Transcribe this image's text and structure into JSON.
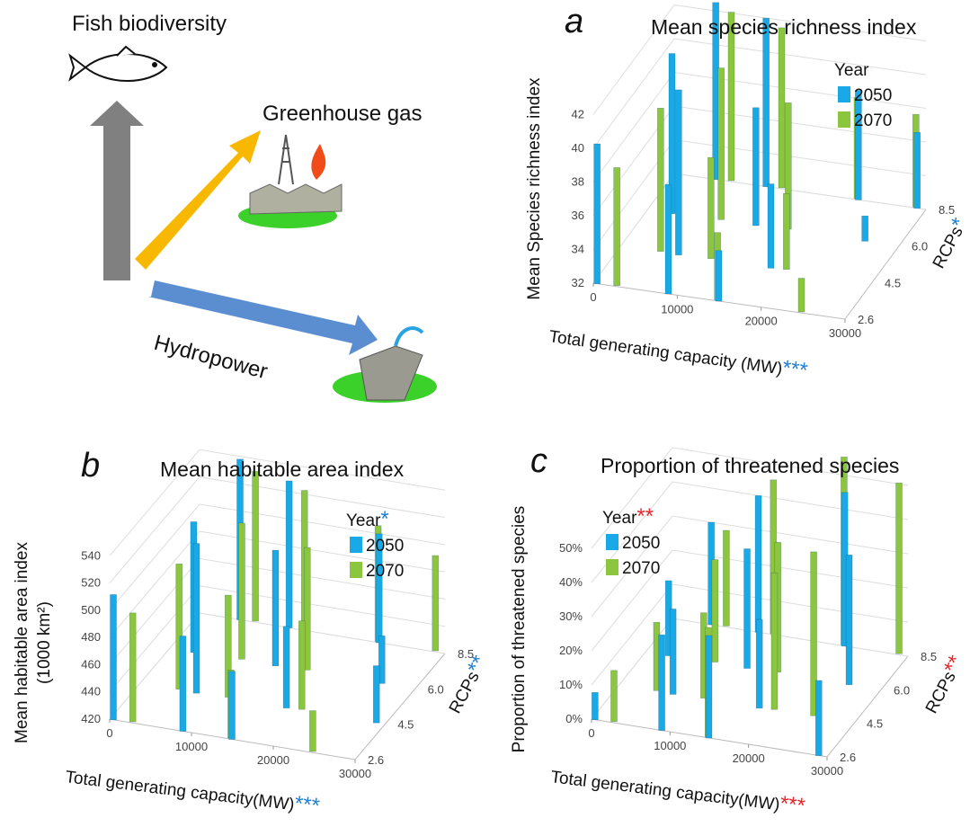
{
  "diagram": {
    "fish_label": "Fish biodiversity",
    "ghg_label": "Greenhouse gas",
    "hydro_label": "Hydropower"
  },
  "chart_data": [
    {
      "type": "bar3d",
      "panel": "a",
      "title": "Mean species richness index",
      "ylabel": "Mean Species richness index",
      "xlabel": "Total generating capacity (MW)",
      "xlabel_stars": "***",
      "zlabel": "RCPs",
      "zlabel_stars": "*",
      "legend_title": "Year",
      "stars_color": "#1f7fd0",
      "xlim": [
        0,
        30000
      ],
      "xticks": [
        0,
        10000,
        20000,
        30000
      ],
      "ylim": [
        32,
        44
      ],
      "yticks": [
        32,
        34,
        36,
        38,
        40,
        42
      ],
      "zcategories": [
        "2.6",
        "4.5",
        "6.0",
        "8.5"
      ],
      "series": [
        {
          "name": "2050",
          "color": "#19a9e6",
          "x": [
            500,
            3000,
            5000,
            7000,
            9000,
            11000,
            13000,
            15000,
            18000,
            22000,
            26000,
            29000
          ],
          "rcp": [
            "2.6",
            "6.0",
            "8.5",
            "4.5",
            "2.6",
            "8.5",
            "6.0",
            "2.6",
            "4.5",
            "8.5",
            "6.0",
            "8.5"
          ],
          "values": [
            40.3,
            41.5,
            42.5,
            41.8,
            38.5,
            42,
            39,
            35,
            37,
            38.5,
            33.5,
            36.5
          ]
        },
        {
          "name": "2070",
          "color": "#8cc63f",
          "x": [
            2000,
            4000,
            6000,
            8000,
            10000,
            12000,
            14000,
            16000,
            19000,
            21000,
            24000,
            28000
          ],
          "rcp": [
            "2.6",
            "4.5",
            "8.5",
            "6.0",
            "4.5",
            "8.5",
            "2.6",
            "6.0",
            "4.5",
            "8.5",
            "2.6",
            "8.5"
          ],
          "values": [
            39,
            40.5,
            42,
            41,
            38,
            41.5,
            36,
            39.5,
            36.5,
            38,
            34,
            37.5
          ]
        }
      ]
    },
    {
      "type": "bar3d",
      "panel": "b",
      "title": "Mean habitable area index",
      "ylabel": "Mean habitable area index",
      "ylabel_unit": "(1000 km²)",
      "xlabel": "Total generating capacity(MW)",
      "xlabel_stars": "***",
      "zlabel": "RCPs",
      "zlabel_stars": "**",
      "legend_title": "Year",
      "legend_title_stars": "*",
      "stars_color": "#1f7fd0",
      "xlim": [
        0,
        30000
      ],
      "xticks": [
        0,
        10000,
        20000,
        30000
      ],
      "ylim": [
        420,
        560
      ],
      "yticks": [
        420,
        440,
        460,
        480,
        500,
        520,
        540
      ],
      "zcategories": [
        "2.6",
        "4.5",
        "6.0",
        "8.5"
      ],
      "series": [
        {
          "name": "2050",
          "color": "#19a9e6",
          "x": [
            500,
            3000,
            5000,
            7000,
            9000,
            11000,
            13000,
            15000,
            18000,
            22000,
            26000,
            29000
          ],
          "rcp": [
            "2.6",
            "6.0",
            "8.5",
            "4.5",
            "2.6",
            "8.5",
            "6.0",
            "2.6",
            "4.5",
            "8.5",
            "6.0",
            "4.5"
          ],
          "values": [
            512,
            516,
            538,
            530,
            490,
            528,
            505,
            470,
            480,
            500,
            455,
            462
          ]
        },
        {
          "name": "2070",
          "color": "#8cc63f",
          "x": [
            2000,
            4000,
            6000,
            8000,
            10000,
            12000,
            14000,
            16000,
            19000,
            21000,
            24000,
            28000
          ],
          "rcp": [
            "2.6",
            "4.5",
            "8.5",
            "6.0",
            "4.5",
            "8.5",
            "2.6",
            "6.0",
            "4.5",
            "8.5",
            "2.6",
            "8.5"
          ],
          "values": [
            500,
            512,
            530,
            520,
            495,
            522,
            470,
            510,
            485,
            505,
            450,
            490
          ]
        }
      ]
    },
    {
      "type": "bar3d",
      "panel": "c",
      "title": "Proportion of threatened species",
      "ylabel": "Proportion of threatened species",
      "xlabel": "Total generating capacity(MW)",
      "xlabel_stars": "***",
      "zlabel": "RCPs",
      "zlabel_stars": "**",
      "legend_title": "Year",
      "legend_title_stars": "**",
      "stars_color": "#e8262b",
      "xlim": [
        0,
        30000
      ],
      "xticks": [
        0,
        10000,
        20000,
        30000
      ],
      "ylim": [
        0,
        60
      ],
      "yticks": [
        {
          "value": 0,
          "label": "0%"
        },
        {
          "value": 10,
          "label": "10%"
        },
        {
          "value": 20,
          "label": "20%"
        },
        {
          "value": 30,
          "label": "30%"
        },
        {
          "value": 40,
          "label": "40%"
        },
        {
          "value": 50,
          "label": "50%"
        }
      ],
      "zcategories": [
        "2.6",
        "4.5",
        "6.0",
        "8.5"
      ],
      "series": [
        {
          "name": "2050",
          "color": "#19a9e6",
          "x": [
            500,
            3000,
            5000,
            7000,
            9000,
            11000,
            13000,
            15000,
            18000,
            22000,
            26000,
            29000
          ],
          "rcp": [
            "2.6",
            "6.0",
            "8.5",
            "4.5",
            "2.6",
            "8.5",
            "6.0",
            "2.6",
            "4.5",
            "8.5",
            "6.0",
            "2.6"
          ],
          "values": [
            8,
            22,
            30,
            25,
            28,
            40,
            35,
            30,
            26,
            45,
            38,
            22
          ]
        },
        {
          "name": "2070",
          "color": "#8cc63f",
          "x": [
            2000,
            4000,
            6000,
            8000,
            10000,
            12000,
            14000,
            16000,
            19000,
            21000,
            24000,
            28000
          ],
          "rcp": [
            "2.6",
            "4.5",
            "8.5",
            "6.0",
            "4.5",
            "8.5",
            "2.6",
            "6.0",
            "4.5",
            "8.5",
            "4.5",
            "8.5"
          ],
          "values": [
            15,
            20,
            28,
            30,
            25,
            45,
            32,
            38,
            40,
            55,
            48,
            50
          ]
        }
      ]
    }
  ]
}
